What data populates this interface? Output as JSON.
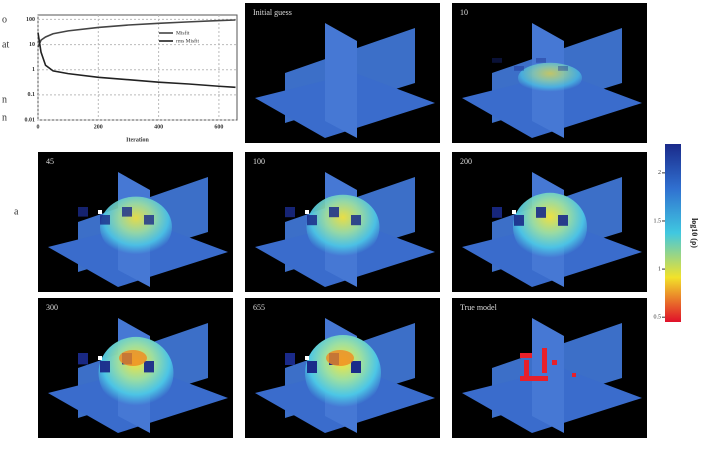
{
  "chart_data": {
    "type": "line",
    "x_label": "Iteration",
    "x": [
      0,
      10,
      25,
      50,
      100,
      200,
      300,
      400,
      500,
      600,
      655
    ],
    "series": [
      {
        "name": "Misfit",
        "color": "#444444",
        "values": [
          8,
          15,
          20,
          27,
          35,
          48,
          60,
          70,
          80,
          90,
          95
        ]
      },
      {
        "name": "rms Misfit",
        "color": "#222222",
        "values": [
          30,
          5,
          1.5,
          0.9,
          0.7,
          0.5,
          0.4,
          0.32,
          0.27,
          0.22,
          0.2
        ]
      }
    ],
    "xlim": [
      0,
      660
    ],
    "xticks": [
      0,
      200,
      400,
      600
    ],
    "ylim": [
      0.01,
      150
    ],
    "yticks": [
      100,
      10,
      1,
      0.1,
      0.01
    ],
    "log_y": true,
    "grid": true,
    "legend": "right"
  },
  "panels": [
    "Initial guess",
    "10",
    "45",
    "100",
    "200",
    "300",
    "655",
    "True model"
  ],
  "colorbar": {
    "title": "log10 (ρ)",
    "lim": [
      0.45,
      2.3
    ],
    "ticks": [
      2,
      1.5,
      1,
      0.5
    ]
  },
  "margin_fragments": [
    "o",
    "at",
    "n",
    "n",
    "a"
  ]
}
